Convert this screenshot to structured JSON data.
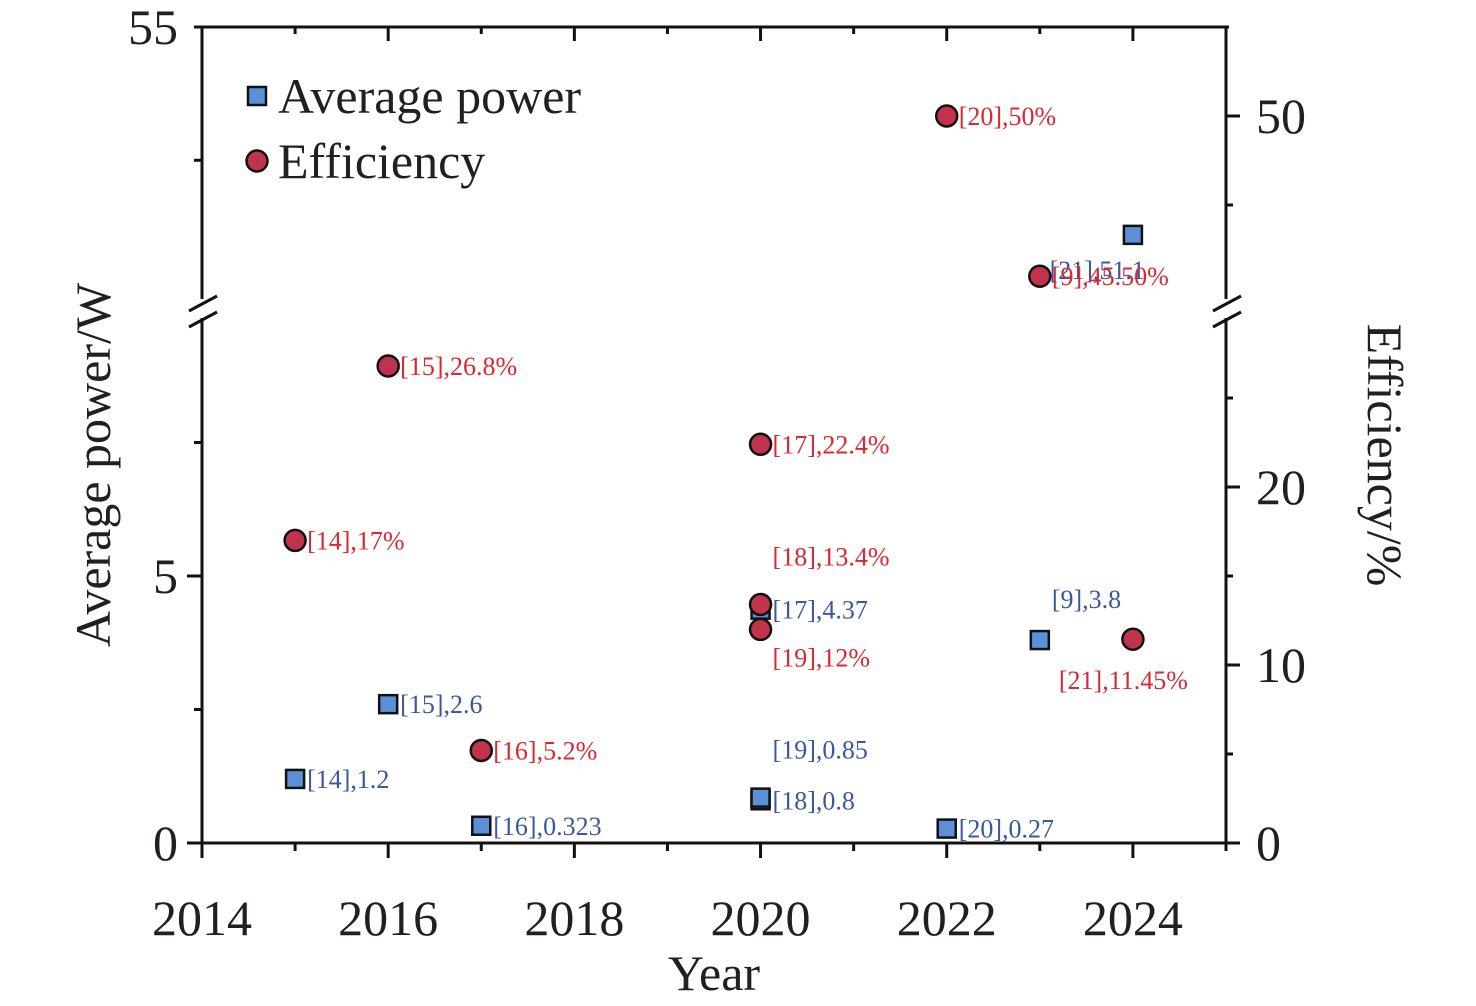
{
  "chart_data": {
    "type": "scatter",
    "title": "",
    "xlabel": "Year",
    "ylabel_left": "Average power/W",
    "ylabel_right": "Efficiency/%",
    "xlim": [
      2014,
      2025
    ],
    "x_ticks": [
      2014,
      2016,
      2018,
      2020,
      2022,
      2024
    ],
    "x_tick_labels": [
      "2014",
      "2016",
      "2018",
      "2020",
      "2022",
      "2024"
    ],
    "y_left": {
      "broken": true,
      "lower_range": [
        0,
        10
      ],
      "upper_range": [
        50,
        55
      ],
      "tick_labels": [
        "0",
        "5",
        "55"
      ],
      "ticks": [
        0,
        5,
        55
      ]
    },
    "y_right": {
      "broken": true,
      "lower_range": [
        0,
        30
      ],
      "upper_range": [
        45,
        55
      ],
      "tick_labels": [
        "0",
        "10",
        "20",
        "50"
      ],
      "ticks": [
        0,
        10,
        20,
        50
      ]
    },
    "legend": {
      "position": "top-left",
      "entries": [
        {
          "label": "Average power",
          "marker": "square",
          "color": "#5b8fd6"
        },
        {
          "label": "Efficiency",
          "marker": "circle",
          "color": "#c0334a"
        }
      ]
    },
    "series": [
      {
        "name": "Average power",
        "axis": "left",
        "marker": "square",
        "color": "#5b8fd6",
        "label_color": "#3a57a0",
        "points": [
          {
            "x": 2015,
            "y": 1.2,
            "label": "[14],1.2",
            "label_pos": "right"
          },
          {
            "x": 2016,
            "y": 2.6,
            "label": "[15],2.6",
            "label_pos": "right"
          },
          {
            "x": 2017,
            "y": 0.323,
            "label": "[16],0.323",
            "label_pos": "right"
          },
          {
            "x": 2020,
            "y": 4.37,
            "label": "[17],4.37",
            "label_pos": "right"
          },
          {
            "x": 2020,
            "y": 0.8,
            "label": "[18],0.8",
            "label_pos": "right"
          },
          {
            "x": 2020,
            "y": 0.85,
            "label": "[19],0.85",
            "label_pos": "above-right"
          },
          {
            "x": 2022,
            "y": 0.27,
            "label": "[20],0.27",
            "label_pos": "right"
          },
          {
            "x": 2023,
            "y": 3.8,
            "label": "[9],3.8",
            "label_pos": "above"
          },
          {
            "x": 2024,
            "y": 51.1,
            "label": "[21],51.1",
            "label_pos": "below"
          }
        ]
      },
      {
        "name": "Efficiency",
        "axis": "right",
        "marker": "circle",
        "color": "#c0334a",
        "label_color": "#d9282f",
        "points": [
          {
            "x": 2015,
            "y": 17,
            "label": "[14],17%",
            "label_pos": "right"
          },
          {
            "x": 2016,
            "y": 26.8,
            "label": "[15],26.8%",
            "label_pos": "right"
          },
          {
            "x": 2017,
            "y": 5.2,
            "label": "[16],5.2%",
            "label_pos": "right"
          },
          {
            "x": 2020,
            "y": 22.4,
            "label": "[17],22.4%",
            "label_pos": "right"
          },
          {
            "x": 2020,
            "y": 13.4,
            "label": "[18],13.4%",
            "label_pos": "above-right"
          },
          {
            "x": 2020,
            "y": 12,
            "label": "[19],12%",
            "label_pos": "below-right"
          },
          {
            "x": 2022,
            "y": 50,
            "label": "[20],50%",
            "label_pos": "right"
          },
          {
            "x": 2023,
            "y": 45.5,
            "label": "[9],45.50%",
            "label_pos": "right"
          },
          {
            "x": 2024,
            "y": 11.45,
            "label": "[21],11.45%",
            "label_pos": "below-left"
          }
        ]
      }
    ]
  }
}
